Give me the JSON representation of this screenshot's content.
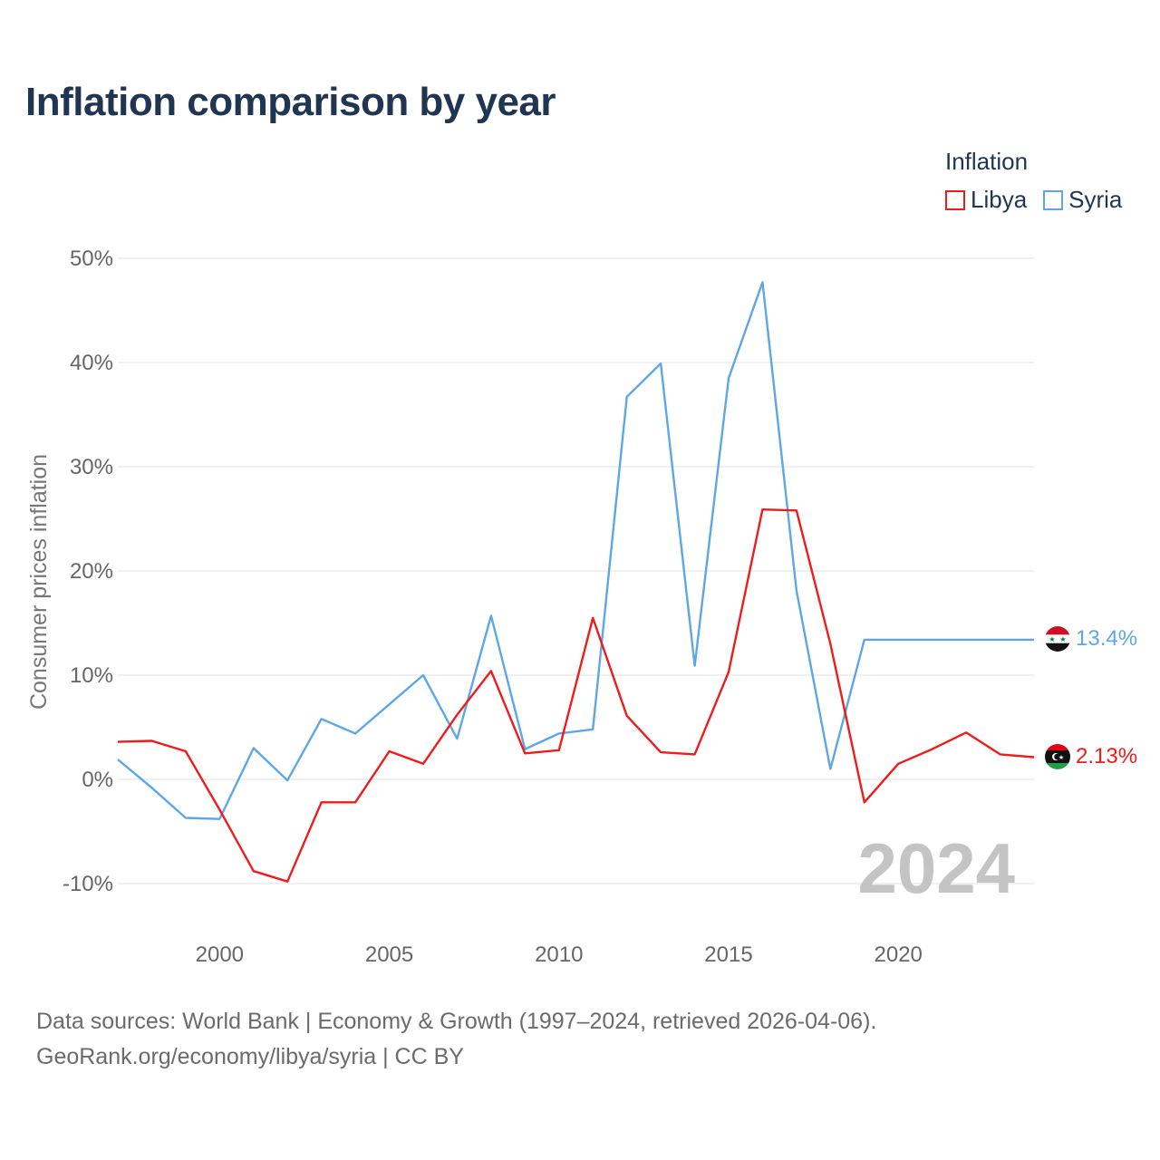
{
  "title": "Inflation comparison by year",
  "legend": {
    "title": "Inflation",
    "items": [
      {
        "name": "Libya",
        "color": "#ee1c1c"
      },
      {
        "name": "Syria",
        "color": "#5ea6e6"
      }
    ]
  },
  "footer": {
    "line1": "Data sources: World Bank | Economy & Growth (1997–2024, retrieved 2026-04-06).",
    "line2": "GeoRank.org/economy/libya/syria | CC BY"
  },
  "watermark_year": "2024",
  "chart_data": {
    "type": "line",
    "title": "Inflation comparison by year",
    "xlabel": "",
    "ylabel": "Consumer prices inflation",
    "xlim": [
      1997,
      2024
    ],
    "ylim": [
      -10,
      50
    ],
    "y_ticks": [
      50,
      40,
      30,
      20,
      10,
      0,
      -10
    ],
    "y_tick_labels": [
      "50%",
      "40%",
      "30%",
      "20%",
      "10%",
      "0%",
      "-10%"
    ],
    "x_ticks": [
      2000,
      2005,
      2010,
      2015,
      2020
    ],
    "x_tick_labels": [
      "2000",
      "2005",
      "2010",
      "2015",
      "2020"
    ],
    "grid": true,
    "x": [
      1997,
      1998,
      1999,
      2000,
      2001,
      2002,
      2003,
      2004,
      2005,
      2006,
      2007,
      2008,
      2009,
      2010,
      2011,
      2012,
      2013,
      2014,
      2015,
      2016,
      2017,
      2018,
      2019,
      2020,
      2021,
      2022,
      2023,
      2024
    ],
    "series": [
      {
        "name": "Syria",
        "color": "#5ea6e6",
        "values": [
          1.9,
          -0.8,
          -3.7,
          -3.8,
          3.0,
          -0.1,
          5.8,
          4.4,
          7.2,
          10.0,
          3.9,
          15.7,
          2.9,
          4.4,
          4.8,
          36.7,
          39.9,
          10.9,
          38.5,
          47.7,
          18.1,
          1.0,
          13.4,
          13.4,
          13.4,
          13.4,
          13.4,
          13.4
        ],
        "end_label": "13.4%"
      },
      {
        "name": "Libya",
        "color": "#ee1c1c",
        "values": [
          3.6,
          3.7,
          2.7,
          -2.9,
          -8.8,
          -9.8,
          -2.2,
          -2.2,
          2.7,
          1.5,
          6.2,
          10.4,
          2.5,
          2.8,
          15.5,
          6.1,
          2.6,
          2.4,
          10.3,
          25.9,
          25.8,
          13.0,
          -2.2,
          1.5,
          2.9,
          4.5,
          2.4,
          2.13
        ],
        "end_label": "2.13%"
      }
    ]
  }
}
